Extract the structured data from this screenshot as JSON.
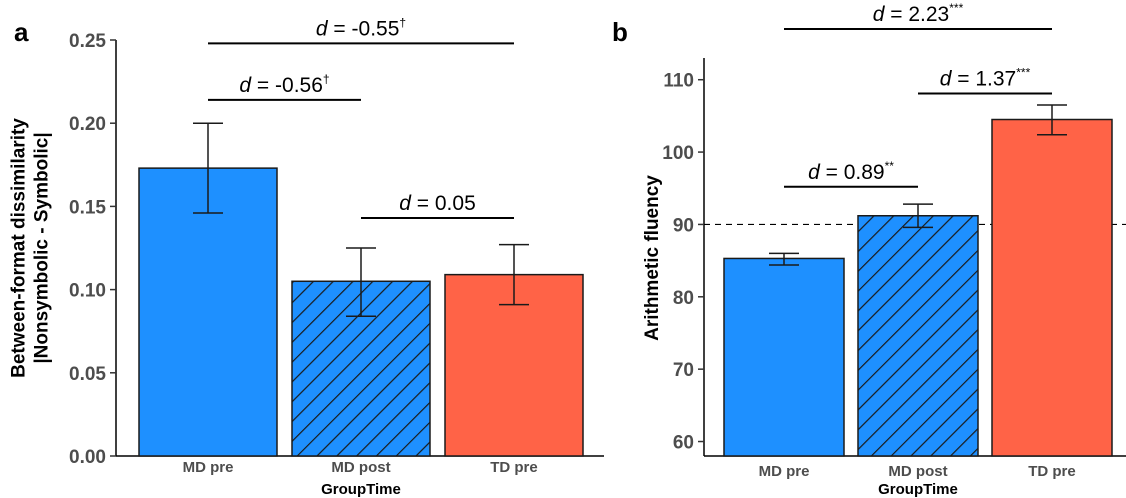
{
  "chart_data": [
    {
      "panel": "a",
      "type": "bar",
      "categories": [
        "MD pre",
        "MD post",
        "TD pre"
      ],
      "values": [
        0.173,
        0.105,
        0.109
      ],
      "error_low": [
        0.146,
        0.084,
        0.091
      ],
      "error_high": [
        0.2,
        0.125,
        0.127
      ],
      "bar_colors": [
        "#1e90ff",
        "#1e90ff",
        "#ff6347"
      ],
      "bar_hatched": [
        false,
        true,
        false
      ],
      "xlabel": "GroupTime",
      "ylabel_lines": [
        "Between-format dissimilarity",
        "|Nonsymbolic - Symbolic|"
      ],
      "ylim": [
        0.0,
        0.25
      ],
      "yticks": [
        "0.00",
        "0.05",
        "0.10",
        "0.15",
        "0.20",
        "0.25"
      ],
      "ytick_values": [
        0.0,
        0.05,
        0.1,
        0.15,
        0.2,
        0.25
      ],
      "grid": false,
      "annotations": [
        {
          "from": 0,
          "to": 2,
          "level": 0.248,
          "prefix": "d",
          "text": " = -0.55",
          "sup": "†"
        },
        {
          "from": 0,
          "to": 1,
          "level": 0.214,
          "prefix": "d",
          "text": " = -0.56",
          "sup": "†"
        },
        {
          "from": 1,
          "to": 2,
          "level": 0.143,
          "prefix": "d",
          "text": " = 0.05",
          "sup": ""
        }
      ]
    },
    {
      "panel": "b",
      "type": "bar",
      "categories": [
        "MD pre",
        "MD post",
        "TD pre"
      ],
      "values": [
        85.3,
        91.2,
        104.5
      ],
      "error_low": [
        84.4,
        89.6,
        102.4
      ],
      "error_high": [
        86.0,
        92.8,
        106.5
      ],
      "bar_colors": [
        "#1e90ff",
        "#1e90ff",
        "#ff6347"
      ],
      "bar_hatched": [
        false,
        true,
        false
      ],
      "xlabel": "GroupTime",
      "ylabel_lines": [
        "Arithmetic fluency"
      ],
      "ylim": [
        58.0,
        113.0
      ],
      "yticks": [
        "60",
        "70",
        "80",
        "90",
        "100",
        "110"
      ],
      "ytick_values": [
        60,
        70,
        80,
        90,
        100,
        110
      ],
      "reference_line": 90,
      "grid": false,
      "annotations": [
        {
          "from": 0,
          "to": 2,
          "level": 117.0,
          "prefix": "d",
          "text": " = 2.23",
          "sup": "***"
        },
        {
          "from": 1,
          "to": 2,
          "level": 108.1,
          "prefix": "d",
          "text": " = 1.37",
          "sup": "***"
        },
        {
          "from": 0,
          "to": 1,
          "level": 95.2,
          "prefix": "d",
          "text": " = 0.89",
          "sup": "**"
        }
      ]
    }
  ],
  "panel_labels": [
    "a",
    "b"
  ]
}
